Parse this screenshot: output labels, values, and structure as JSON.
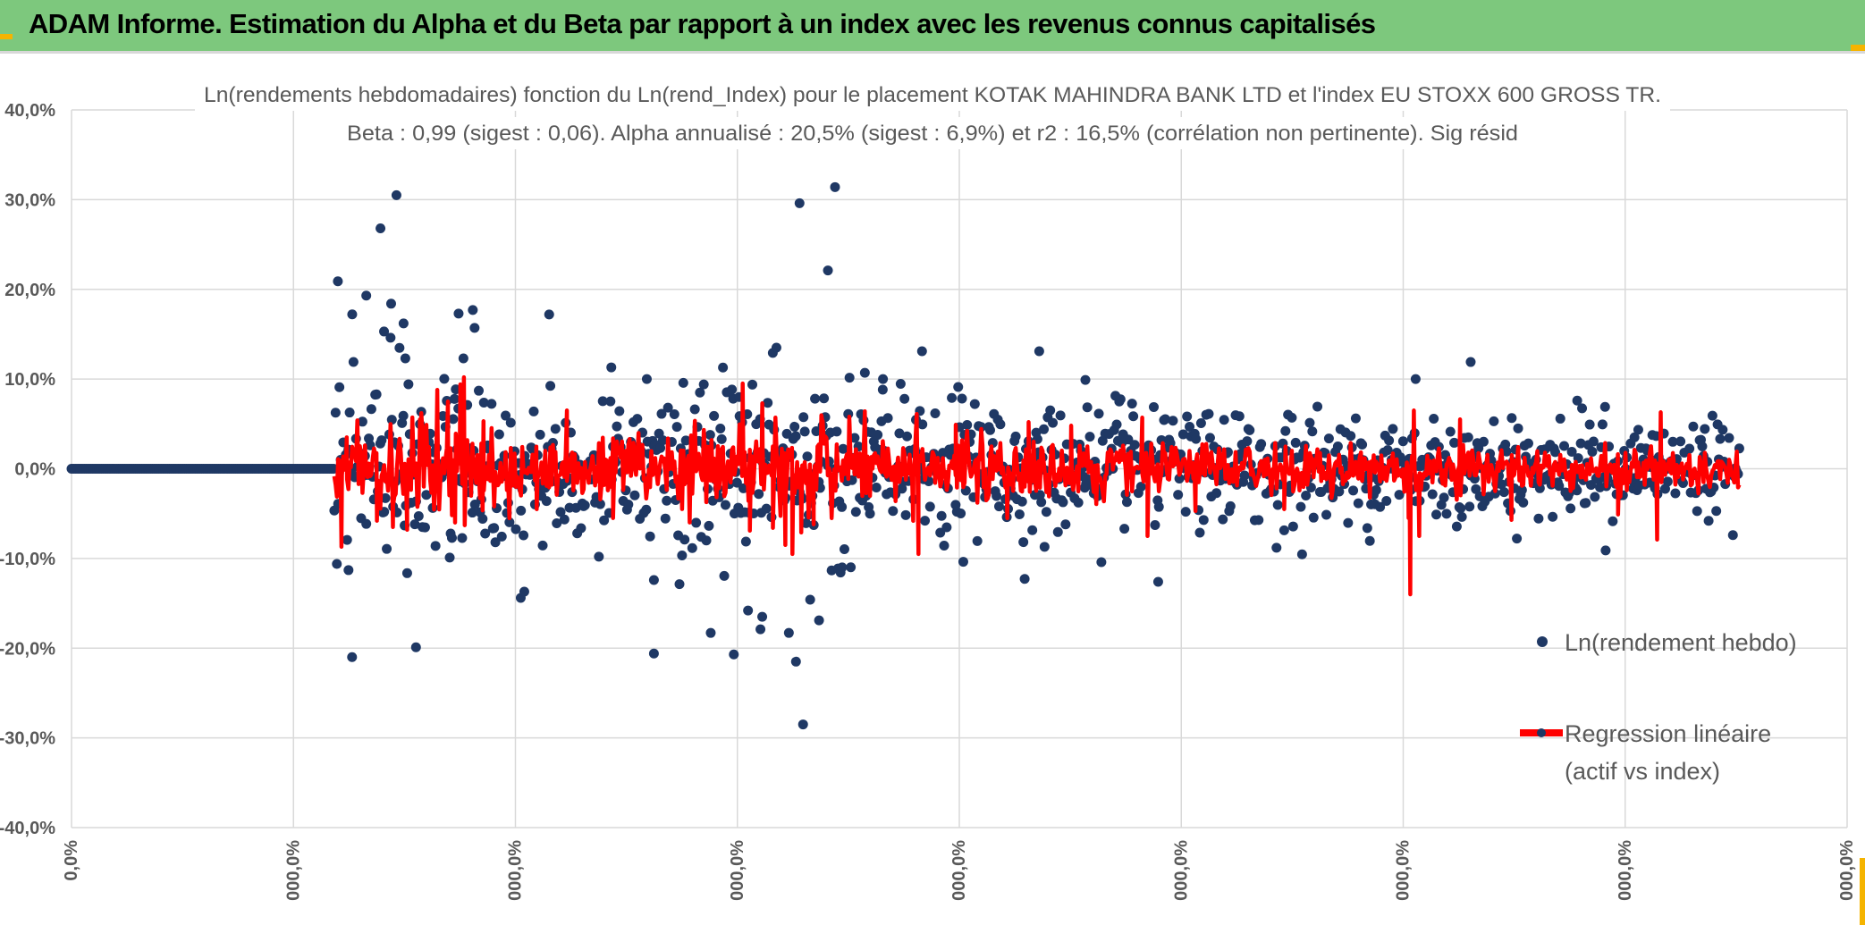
{
  "header": {
    "title": "ADAM Informe. Estimation du Alpha et du Beta par rapport à un index avec les revenus connus capitalisés"
  },
  "colors": {
    "header_bg": "#7dc87d",
    "points": "#1f3864",
    "regression": "#ff0000",
    "grid": "#d9d9d9",
    "text": "#595959"
  },
  "chart_data": {
    "type": "scatter",
    "title_lines": [
      "Ln(rendements hebdomadaires) fonction du Ln(rend_Index) pour le placement KOTAK MAHINDRA BANK LTD et l'index EU STOXX 600 GROSS TR.",
      "Beta : 0,99 (sigest : 0,06). Alpha annualisé : 20,5% (sigest : 6,9%) et r2 : 16,5% (corrélation non pertinente). Sig résid"
    ],
    "ylim": [
      -0.4,
      0.4
    ],
    "y_ticks": [
      {
        "value": 0.4,
        "label": "40,0%"
      },
      {
        "value": 0.3,
        "label": "30,0%"
      },
      {
        "value": 0.2,
        "label": "20,0%"
      },
      {
        "value": 0.1,
        "label": "10,0%"
      },
      {
        "value": 0.0,
        "label": "0,0%"
      },
      {
        "value": -0.1,
        "label": "-10,0%"
      },
      {
        "value": -0.2,
        "label": "-20,0%"
      },
      {
        "value": -0.3,
        "label": "-30,0%"
      },
      {
        "value": -0.4,
        "label": "-40,0%"
      }
    ],
    "x_tick_labels": [
      "0,0%",
      "000,0%",
      "000,0%",
      "000,0%",
      "000,0%",
      "000,0%",
      "000,0%",
      "000,0%",
      "000,0%"
    ],
    "grid": true,
    "legend_position": "right",
    "series": [
      {
        "name": "Ln(rendement hebdo)",
        "kind": "points",
        "zero_segment": [
          0.0,
          0.148
        ],
        "highlights": [
          [
            0.15,
            0.209
          ],
          [
            0.156,
            -0.113
          ],
          [
            0.158,
            -0.21
          ],
          [
            0.166,
            0.193
          ],
          [
            0.174,
            0.268
          ],
          [
            0.176,
            0.153
          ],
          [
            0.18,
            0.184
          ],
          [
            0.183,
            0.305
          ],
          [
            0.187,
            0.162
          ],
          [
            0.188,
            0.123
          ],
          [
            0.194,
            -0.199
          ],
          [
            0.205,
            -0.086
          ],
          [
            0.213,
            -0.099
          ],
          [
            0.218,
            0.173
          ],
          [
            0.226,
            0.177
          ],
          [
            0.227,
            0.157
          ],
          [
            0.253,
            -0.144
          ],
          [
            0.255,
            -0.137
          ],
          [
            0.269,
            0.172
          ],
          [
            0.297,
            -0.098
          ],
          [
            0.304,
            0.113
          ],
          [
            0.324,
            0.1
          ],
          [
            0.328,
            -0.206
          ],
          [
            0.328,
            -0.124
          ],
          [
            0.36,
            -0.183
          ],
          [
            0.373,
            -0.207
          ],
          [
            0.376,
            0.08
          ],
          [
            0.381,
            -0.158
          ],
          [
            0.388,
            -0.179
          ],
          [
            0.389,
            -0.165
          ],
          [
            0.397,
            0.135
          ],
          [
            0.404,
            -0.183
          ],
          [
            0.408,
            -0.215
          ],
          [
            0.41,
            0.296
          ],
          [
            0.412,
            -0.285
          ],
          [
            0.416,
            -0.146
          ],
          [
            0.426,
            0.221
          ],
          [
            0.43,
            0.314
          ],
          [
            0.434,
            -0.11
          ],
          [
            0.421,
            -0.169
          ],
          [
            0.457,
            0.1
          ],
          [
            0.479,
            0.131
          ],
          [
            0.545,
            0.131
          ],
          [
            0.548,
            -0.087
          ],
          [
            0.571,
            0.099
          ],
          [
            0.612,
            -0.126
          ],
          [
            0.757,
            0.1
          ],
          [
            0.788,
            0.119
          ],
          [
            0.864,
            -0.091
          ],
          [
            0.848,
            0.076
          ]
        ],
        "noise_sigma": 0.038
      },
      {
        "name": "Regression linéaire (actif vs index)",
        "legend_lines": [
          "Regression linéaire",
          "(actif vs index)"
        ],
        "kind": "line",
        "beta": 0.99,
        "spikes": [
          [
            0.152,
            -0.087
          ],
          [
            0.155,
            0.035
          ],
          [
            0.172,
            -0.058
          ],
          [
            0.181,
            -0.065
          ],
          [
            0.189,
            -0.068
          ],
          [
            0.197,
            0.062
          ],
          [
            0.206,
            0.088
          ],
          [
            0.212,
            0.075
          ],
          [
            0.216,
            -0.06
          ],
          [
            0.219,
            0.094
          ],
          [
            0.221,
            0.102
          ],
          [
            0.232,
            0.053
          ],
          [
            0.262,
            -0.045
          ],
          [
            0.279,
            0.065
          ],
          [
            0.305,
            -0.055
          ],
          [
            0.378,
            0.095
          ],
          [
            0.382,
            -0.069
          ],
          [
            0.389,
            0.073
          ],
          [
            0.395,
            -0.066
          ],
          [
            0.402,
            -0.085
          ],
          [
            0.406,
            -0.095
          ],
          [
            0.411,
            -0.071
          ],
          [
            0.418,
            -0.062
          ],
          [
            0.423,
            0.051
          ],
          [
            0.438,
            0.058
          ],
          [
            0.474,
            -0.058
          ],
          [
            0.476,
            0.061
          ],
          [
            0.477,
            -0.095
          ],
          [
            0.498,
            0.049
          ],
          [
            0.527,
            -0.055
          ],
          [
            0.539,
            0.052
          ],
          [
            0.563,
            0.048
          ],
          [
            0.603,
            0.057
          ],
          [
            0.606,
            -0.075
          ],
          [
            0.633,
            -0.047
          ],
          [
            0.683,
            -0.045
          ],
          [
            0.753,
            -0.055
          ],
          [
            0.754,
            -0.14
          ],
          [
            0.756,
            0.065
          ],
          [
            0.759,
            -0.075
          ],
          [
            0.782,
            0.055
          ],
          [
            0.811,
            -0.057
          ],
          [
            0.871,
            -0.051
          ],
          [
            0.893,
            -0.079
          ],
          [
            0.895,
            0.063
          ]
        ]
      }
    ]
  }
}
